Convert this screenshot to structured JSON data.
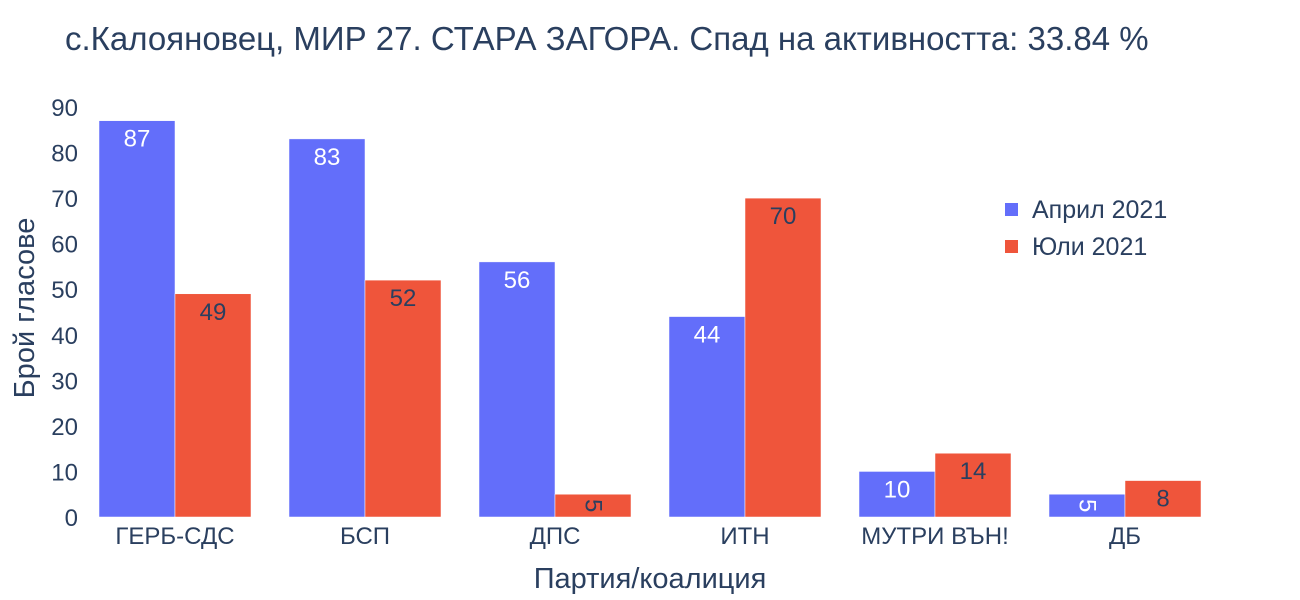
{
  "chart_data": {
    "type": "bar",
    "title": "с.Калояновец, МИР 27. СТАРА ЗАГОРА. Спад на активността: 33.84 %",
    "xlabel": "Партия/коалиция",
    "ylabel": "Брой гласове",
    "categories": [
      "ГЕРБ-СДС",
      "БСП",
      "ДПС",
      "ИТН",
      "МУТРИ ВЪН!",
      "ДБ"
    ],
    "series": [
      {
        "name": "Април 2021",
        "color": "#636efa",
        "label_color": "#ffffff",
        "values": [
          87,
          83,
          56,
          44,
          10,
          5
        ]
      },
      {
        "name": "Юли 2021",
        "color": "#ef553b",
        "label_color": "#2a3f5f",
        "values": [
          49,
          52,
          5,
          70,
          14,
          8
        ]
      }
    ],
    "ylim": [
      0,
      90
    ],
    "yticks": [
      0,
      10,
      20,
      30,
      40,
      50,
      60,
      70,
      80,
      90
    ],
    "grid": false,
    "legend_position": "top-right"
  }
}
